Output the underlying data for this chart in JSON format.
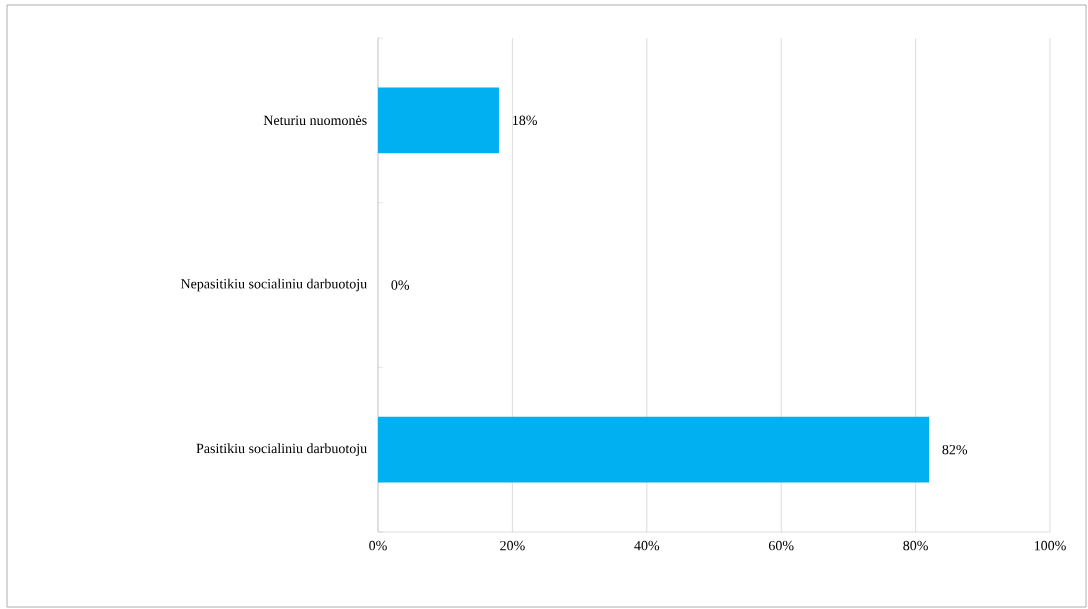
{
  "chart_data": {
    "type": "bar",
    "orientation": "horizontal",
    "categories": [
      "Neturiu nuomonės",
      "Nepasitikiu socialiniu darbuotoju",
      "Pasitikiu socialiniu darbuotoju"
    ],
    "values": [
      18,
      0,
      82
    ],
    "color": "#00b0f0",
    "value_labels": [
      "18%",
      "0%",
      "82%"
    ],
    "xlim": [
      0,
      100
    ],
    "xticks": [
      {
        "value": 0,
        "label": "0%"
      },
      {
        "value": 20,
        "label": "20%"
      },
      {
        "value": 40,
        "label": "40%"
      },
      {
        "value": 60,
        "label": "60%"
      },
      {
        "value": 80,
        "label": "80%"
      },
      {
        "value": 100,
        "label": "100%"
      }
    ],
    "grid": "x"
  }
}
